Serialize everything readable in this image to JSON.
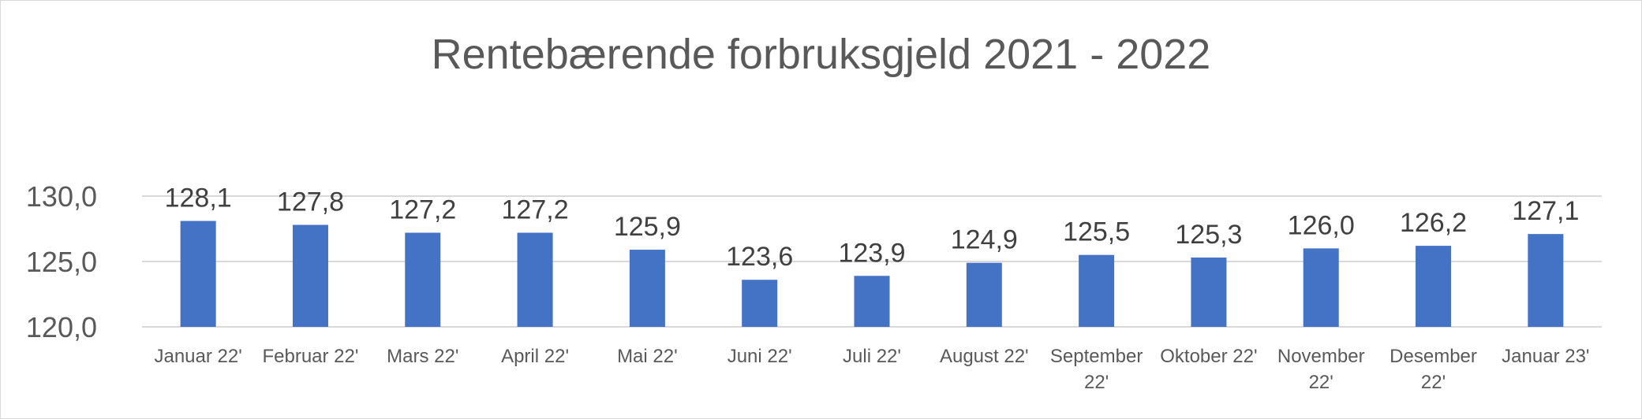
{
  "chart_data": {
    "type": "bar",
    "title": "Rentebærende forbruksgjeld 2021 - 2022",
    "xlabel": "",
    "ylabel": "",
    "categories": [
      "Januar 22'",
      "Februar 22'",
      "Mars 22'",
      "April 22'",
      "Mai 22'",
      "Juni 22'",
      "Juli 22'",
      "August 22'",
      "September 22'",
      "Oktober 22'",
      "November 22'",
      "Desember 22'",
      "Januar 23'"
    ],
    "values": [
      128.1,
      127.8,
      127.2,
      127.2,
      125.9,
      123.6,
      123.9,
      124.9,
      125.5,
      125.3,
      126.0,
      126.2,
      127.1
    ],
    "data_labels": [
      "128,1",
      "127,8",
      "127,2",
      "127,2",
      "125,9",
      "123,6",
      "123,9",
      "124,9",
      "125,5",
      "125,3",
      "126,0",
      "126,2",
      "127,1"
    ],
    "y_ticks": [
      "120,0",
      "125,0",
      "130,0"
    ],
    "y_tick_values": [
      120,
      125,
      130
    ],
    "ylim": [
      120,
      130
    ],
    "grid": true,
    "legend": "none",
    "bar_color": "#4472c4",
    "grid_color": "#d9d9d9"
  }
}
